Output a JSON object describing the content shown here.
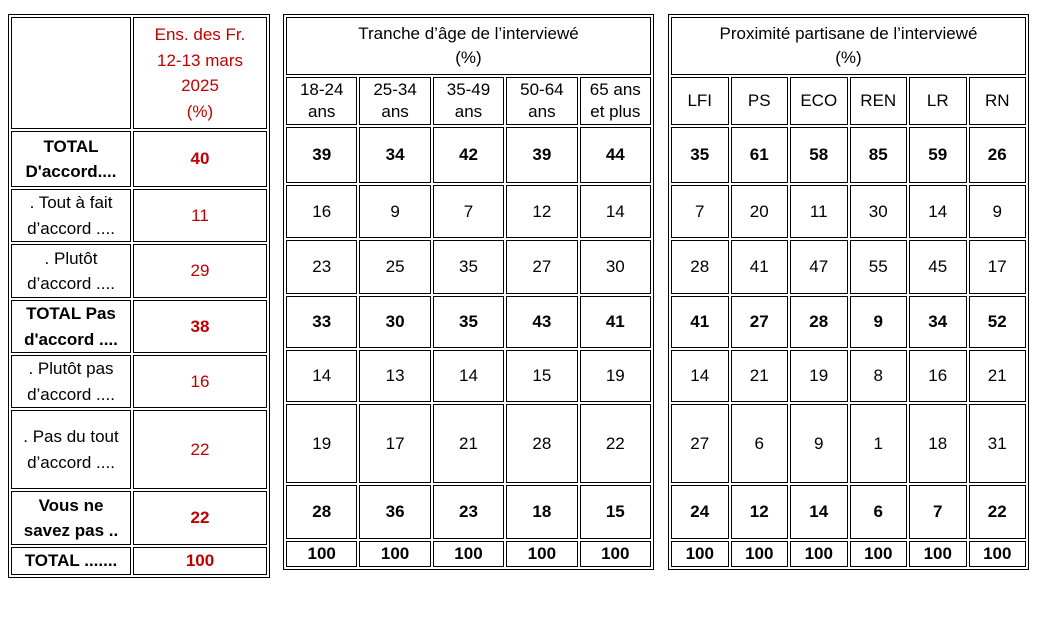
{
  "colors": {
    "accent_red": "#C00000",
    "text": "#000000",
    "border": "#000000"
  },
  "left_table": {
    "header": {
      "line1": "Ens. des Fr.",
      "line2": "12-13 mars",
      "line3": "2025",
      "line4": "(%)"
    }
  },
  "age_table": {
    "title": "Tranche d’âge de l’interviewé",
    "subtitle": "(%)",
    "columns": [
      [
        "18-24",
        "ans"
      ],
      [
        "25-34",
        "ans"
      ],
      [
        "35-49",
        "ans"
      ],
      [
        "50-64",
        "ans"
      ],
      [
        "65 ans",
        "et plus"
      ]
    ]
  },
  "party_table": {
    "title": "Proximité partisane de l’interviewé",
    "subtitle": "(%)",
    "columns": [
      "LFI",
      "PS",
      "ECO",
      "REN",
      "LR",
      "RN"
    ]
  },
  "rows": [
    {
      "label": "TOTAL D'accord....",
      "bold": true,
      "ens": "40",
      "age": [
        "39",
        "34",
        "42",
        "39",
        "44"
      ],
      "party": [
        "35",
        "61",
        "58",
        "85",
        "59",
        "26"
      ]
    },
    {
      "label": ". Tout à fait d’accord ....",
      "bold": false,
      "ens": "11",
      "age": [
        "16",
        "9",
        "7",
        "12",
        "14"
      ],
      "party": [
        "7",
        "20",
        "11",
        "30",
        "14",
        "9"
      ]
    },
    {
      "label": ". Plutôt d’accord ....",
      "bold": false,
      "ens": "29",
      "age": [
        "23",
        "25",
        "35",
        "27",
        "30"
      ],
      "party": [
        "28",
        "41",
        "47",
        "55",
        "45",
        "17"
      ]
    },
    {
      "label": "TOTAL Pas d'accord ....",
      "bold": true,
      "ens": "38",
      "age": [
        "33",
        "30",
        "35",
        "43",
        "41"
      ],
      "party": [
        "41",
        "27",
        "28",
        "9",
        "34",
        "52"
      ]
    },
    {
      "label": ". Plutôt pas d’accord ....",
      "bold": false,
      "ens": "16",
      "age": [
        "14",
        "13",
        "14",
        "15",
        "19"
      ],
      "party": [
        "14",
        "21",
        "19",
        "8",
        "16",
        "21"
      ]
    },
    {
      "label": ". Pas du tout d’accord ....",
      "bold": false,
      "ens": "22",
      "age": [
        "19",
        "17",
        "21",
        "28",
        "22"
      ],
      "party": [
        "27",
        "6",
        "9",
        "1",
        "18",
        "31"
      ]
    },
    {
      "label": "Vous ne savez pas ..",
      "bold": true,
      "ens": "22",
      "age": [
        "28",
        "36",
        "23",
        "18",
        "15"
      ],
      "party": [
        "24",
        "12",
        "14",
        "6",
        "7",
        "22"
      ]
    },
    {
      "label": "TOTAL .......",
      "bold": true,
      "ens": "100",
      "age": [
        "100",
        "100",
        "100",
        "100",
        "100"
      ],
      "party": [
        "100",
        "100",
        "100",
        "100",
        "100",
        "100"
      ]
    }
  ]
}
